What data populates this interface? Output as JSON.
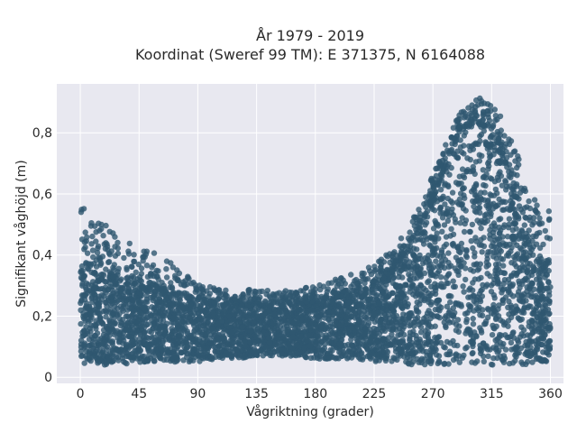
{
  "chart_data": {
    "type": "scatter",
    "title_lines": [
      "År 1979 - 2019",
      "Koordinat (Sweref 99 TM): E 371375, N 6164088"
    ],
    "xlabel": "Vågriktning (grader)",
    "ylabel": "Signifikant våghöjd (m)",
    "xlim": [
      -18,
      370
    ],
    "ylim": [
      -0.02,
      0.96
    ],
    "xticks": [
      0,
      45,
      90,
      135,
      180,
      225,
      270,
      315,
      360
    ],
    "xtick_labels": [
      "0",
      "45",
      "90",
      "135",
      "180",
      "225",
      "270",
      "315",
      "360"
    ],
    "yticks": [
      0,
      0.2,
      0.4,
      0.6,
      0.8
    ],
    "ytick_labels": [
      "0",
      "0,2",
      "0,4",
      "0,6",
      "0,8"
    ],
    "grid": true,
    "marker_color": "#2f5870",
    "background": "#e8e8f0",
    "envelope": {
      "x": [
        0,
        10,
        20,
        30,
        45,
        60,
        75,
        90,
        105,
        120,
        135,
        150,
        165,
        180,
        195,
        210,
        225,
        240,
        255,
        270,
        280,
        290,
        300,
        310,
        320,
        330,
        340,
        350,
        360
      ],
      "y_min": [
        0.04,
        0.04,
        0.04,
        0.04,
        0.05,
        0.05,
        0.05,
        0.05,
        0.06,
        0.06,
        0.07,
        0.07,
        0.07,
        0.06,
        0.06,
        0.06,
        0.05,
        0.05,
        0.04,
        0.04,
        0.04,
        0.04,
        0.04,
        0.04,
        0.04,
        0.04,
        0.04,
        0.05,
        0.05
      ],
      "y_max": [
        0.58,
        0.53,
        0.5,
        0.45,
        0.43,
        0.4,
        0.37,
        0.31,
        0.29,
        0.28,
        0.29,
        0.28,
        0.29,
        0.3,
        0.32,
        0.34,
        0.37,
        0.42,
        0.52,
        0.66,
        0.78,
        0.86,
        0.91,
        0.92,
        0.87,
        0.8,
        0.65,
        0.57,
        0.54
      ],
      "y_dense_max": [
        0.35,
        0.34,
        0.33,
        0.32,
        0.3,
        0.29,
        0.27,
        0.25,
        0.24,
        0.23,
        0.24,
        0.23,
        0.24,
        0.25,
        0.26,
        0.27,
        0.3,
        0.35,
        0.45,
        0.58,
        0.7,
        0.8,
        0.84,
        0.82,
        0.76,
        0.64,
        0.48,
        0.38,
        0.35
      ]
    }
  }
}
